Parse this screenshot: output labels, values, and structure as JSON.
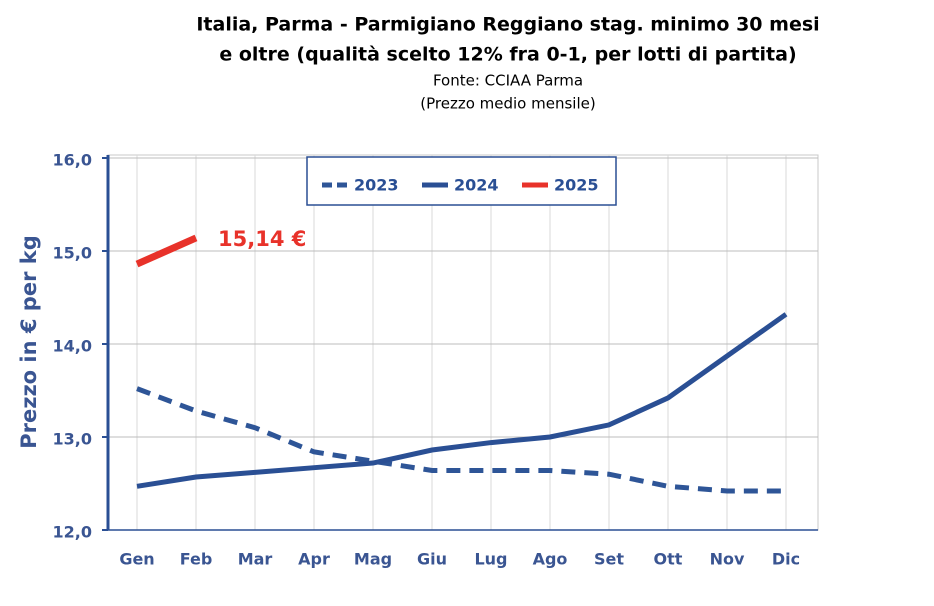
{
  "chart_data": {
    "type": "line",
    "title": [
      "Italia, Parma - Parmigiano Reggiano stag. minimo 30 mesi",
      "e oltre (qualità scelto 12% fra 0-1, per lotti di partita)"
    ],
    "subtitle": [
      "Fonte: CCIAA Parma",
      "(Prezzo medio mensile)"
    ],
    "y_label": "Prezzo in € per kg",
    "categories": [
      "Gen",
      "Feb",
      "Mar",
      "Apr",
      "Mag",
      "Giu",
      "Lug",
      "Ago",
      "Set",
      "Ott",
      "Nov",
      "Dic"
    ],
    "series": [
      {
        "name": "2023",
        "color": "#2e5597",
        "dash": true,
        "values": [
          13.52,
          13.28,
          13.1,
          12.84,
          12.74,
          12.64,
          12.64,
          12.64,
          12.6,
          12.47,
          12.42,
          12.42
        ]
      },
      {
        "name": "2024",
        "color": "#2a4f94",
        "dash": false,
        "values": [
          12.47,
          12.57,
          12.62,
          12.67,
          12.72,
          12.86,
          12.94,
          13.0,
          13.13,
          13.42,
          13.87,
          14.32
        ]
      },
      {
        "name": "2025",
        "color": "#e8322a",
        "dash": false,
        "values": [
          14.86,
          15.14,
          null,
          null,
          null,
          null,
          null,
          null,
          null,
          null,
          null,
          null
        ],
        "value_labels": [
          null,
          "15,14 €",
          null,
          null,
          null,
          null,
          null,
          null,
          null,
          null,
          null,
          null
        ]
      }
    ],
    "ylim": [
      12,
      16
    ],
    "yticks": [
      {
        "value": 12,
        "label": "12,0"
      },
      {
        "value": 13,
        "label": "13,0"
      },
      {
        "value": 14,
        "label": "14,0"
      },
      {
        "value": 15,
        "label": "15,0"
      },
      {
        "value": 16,
        "label": "16,0"
      }
    ],
    "grid": true,
    "legend": "top"
  }
}
